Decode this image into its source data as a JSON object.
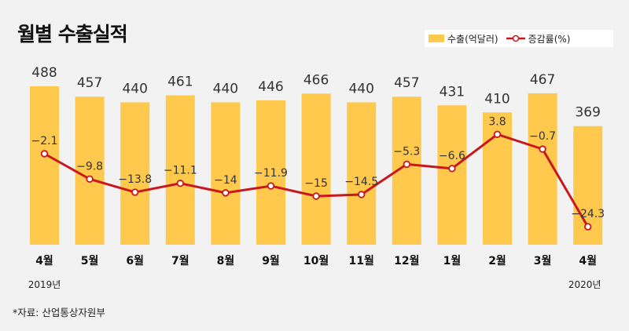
{
  "title": "월별 수출실적",
  "source": "*자료: 산업통상자원부",
  "legend": {
    "bar_label": "수출(억달러)",
    "line_label": "증감률(%)"
  },
  "colors": {
    "bar": "#ffc94d",
    "line": "#c8181e",
    "marker_fill": "#ffffff",
    "background": "#f2f2f2"
  },
  "chart_data": {
    "type": "bar",
    "categories": [
      "4월",
      "5월",
      "6월",
      "7월",
      "8월",
      "9월",
      "10월",
      "11월",
      "12월",
      "1월",
      "2월",
      "3월",
      "4월"
    ],
    "year_labels": {
      "first": "2019년",
      "last": "2020년"
    },
    "series": [
      {
        "name": "수출(억달러)",
        "type": "bar",
        "values": [
          488,
          457,
          440,
          461,
          440,
          446,
          466,
          440,
          457,
          431,
          410,
          467,
          369
        ]
      },
      {
        "name": "증감률(%)",
        "type": "line",
        "values": [
          -2.1,
          -9.8,
          -13.8,
          -11.1,
          -14,
          -11.9,
          -15,
          -14.5,
          -5.3,
          -6.6,
          3.8,
          -0.7,
          -24.3
        ]
      }
    ],
    "grid": false,
    "legend_position": "top-right"
  }
}
